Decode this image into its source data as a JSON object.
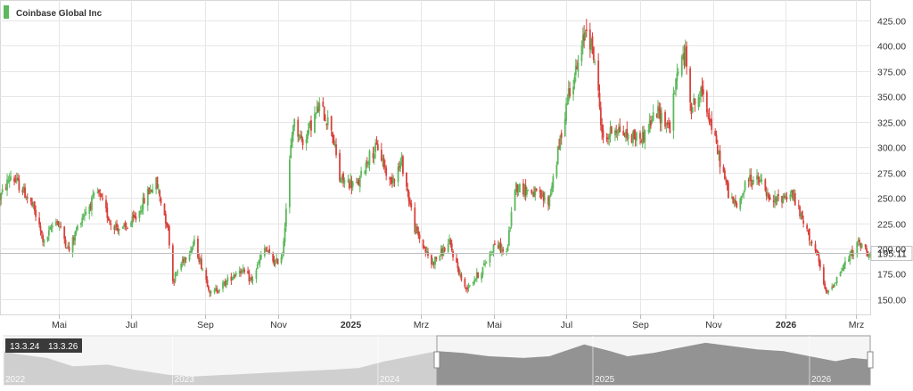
{
  "legend": {
    "label": "Coinbase Global Inc",
    "color": "#5cb85c"
  },
  "colors": {
    "up": "#5cb85c",
    "down": "#d9413b",
    "grid": "#e6e6e6",
    "axis_text": "#333333",
    "navigator_fill": "#8a8a8a",
    "navigator_fill_light": "#cfcfcf"
  },
  "chart_data": {
    "type": "candlestick",
    "title": "Coinbase Global Inc",
    "ylim": [
      135,
      445
    ],
    "y_ticks": [
      150,
      175,
      200,
      225,
      250,
      275,
      300,
      325,
      350,
      375,
      400,
      425
    ],
    "y_tick_labels": [
      "150.00",
      "175.00",
      "200.00",
      "225.00",
      "250.00",
      "275.00",
      "300.00",
      "325.00",
      "350.00",
      "375.00",
      "400.00",
      "425.00"
    ],
    "x_range": [
      "2024-03-13",
      "2026-03-13"
    ],
    "x_ticks": [
      {
        "date": "2024-05-01",
        "label": "Mai",
        "bold": false
      },
      {
        "date": "2024-07-01",
        "label": "Jul",
        "bold": false
      },
      {
        "date": "2024-09-01",
        "label": "Sep",
        "bold": false
      },
      {
        "date": "2024-11-01",
        "label": "Nov",
        "bold": false
      },
      {
        "date": "2025-01-01",
        "label": "2025",
        "bold": true
      },
      {
        "date": "2025-03-01",
        "label": "Mrz",
        "bold": false
      },
      {
        "date": "2025-05-01",
        "label": "Mai",
        "bold": false
      },
      {
        "date": "2025-07-01",
        "label": "Jul",
        "bold": false
      },
      {
        "date": "2025-09-01",
        "label": "Sep",
        "bold": false
      },
      {
        "date": "2025-11-01",
        "label": "Nov",
        "bold": false
      },
      {
        "date": "2026-01-01",
        "label": "2026",
        "bold": true
      },
      {
        "date": "2026-03-01",
        "label": "Mrz",
        "bold": false
      }
    ],
    "last_price": 195.11,
    "last_price_label": "195.11",
    "close_path": [
      {
        "date": "2024-03-13",
        "close": 250
      },
      {
        "date": "2024-03-22",
        "close": 272
      },
      {
        "date": "2024-04-01",
        "close": 258
      },
      {
        "date": "2024-04-10",
        "close": 240
      },
      {
        "date": "2024-04-19",
        "close": 205
      },
      {
        "date": "2024-04-29",
        "close": 230
      },
      {
        "date": "2024-05-10",
        "close": 198
      },
      {
        "date": "2024-05-20",
        "close": 230
      },
      {
        "date": "2024-06-03",
        "close": 255
      },
      {
        "date": "2024-06-14",
        "close": 225
      },
      {
        "date": "2024-06-24",
        "close": 218
      },
      {
        "date": "2024-07-05",
        "close": 230
      },
      {
        "date": "2024-07-15",
        "close": 255
      },
      {
        "date": "2024-07-22",
        "close": 265
      },
      {
        "date": "2024-08-01",
        "close": 220
      },
      {
        "date": "2024-08-05",
        "close": 168
      },
      {
        "date": "2024-08-14",
        "close": 190
      },
      {
        "date": "2024-08-23",
        "close": 205
      },
      {
        "date": "2024-09-06",
        "close": 155
      },
      {
        "date": "2024-09-17",
        "close": 165
      },
      {
        "date": "2024-09-30",
        "close": 180
      },
      {
        "date": "2024-10-10",
        "close": 168
      },
      {
        "date": "2024-10-21",
        "close": 200
      },
      {
        "date": "2024-10-30",
        "close": 185
      },
      {
        "date": "2024-11-05",
        "close": 195
      },
      {
        "date": "2024-11-11",
        "close": 285
      },
      {
        "date": "2024-11-14",
        "close": 325
      },
      {
        "date": "2024-11-22",
        "close": 305
      },
      {
        "date": "2024-12-06",
        "close": 340
      },
      {
        "date": "2024-12-16",
        "close": 320
      },
      {
        "date": "2024-12-23",
        "close": 268
      },
      {
        "date": "2025-01-07",
        "close": 262
      },
      {
        "date": "2025-01-16",
        "close": 290
      },
      {
        "date": "2025-01-24",
        "close": 300
      },
      {
        "date": "2025-02-03",
        "close": 265
      },
      {
        "date": "2025-02-13",
        "close": 285
      },
      {
        "date": "2025-02-24",
        "close": 220
      },
      {
        "date": "2025-03-10",
        "close": 185
      },
      {
        "date": "2025-03-25",
        "close": 205
      },
      {
        "date": "2025-04-07",
        "close": 160
      },
      {
        "date": "2025-04-21",
        "close": 178
      },
      {
        "date": "2025-05-02",
        "close": 205
      },
      {
        "date": "2025-05-12",
        "close": 195
      },
      {
        "date": "2025-05-19",
        "close": 262
      },
      {
        "date": "2025-06-04",
        "close": 255
      },
      {
        "date": "2025-06-16",
        "close": 245
      },
      {
        "date": "2025-06-25",
        "close": 300
      },
      {
        "date": "2025-07-03",
        "close": 355
      },
      {
        "date": "2025-07-11",
        "close": 380
      },
      {
        "date": "2025-07-18",
        "close": 420
      },
      {
        "date": "2025-07-25",
        "close": 385
      },
      {
        "date": "2025-08-01",
        "close": 305
      },
      {
        "date": "2025-08-11",
        "close": 320
      },
      {
        "date": "2025-08-22",
        "close": 310
      },
      {
        "date": "2025-09-03",
        "close": 310
      },
      {
        "date": "2025-09-15",
        "close": 335
      },
      {
        "date": "2025-09-26",
        "close": 320
      },
      {
        "date": "2025-10-03",
        "close": 380
      },
      {
        "date": "2025-10-09",
        "close": 390
      },
      {
        "date": "2025-10-14",
        "close": 340
      },
      {
        "date": "2025-10-24",
        "close": 355
      },
      {
        "date": "2025-11-04",
        "close": 300
      },
      {
        "date": "2025-11-14",
        "close": 255
      },
      {
        "date": "2025-11-21",
        "close": 240
      },
      {
        "date": "2025-12-01",
        "close": 270
      },
      {
        "date": "2025-12-12",
        "close": 265
      },
      {
        "date": "2025-12-19",
        "close": 245
      },
      {
        "date": "2026-01-06",
        "close": 255
      },
      {
        "date": "2026-01-16",
        "close": 225
      },
      {
        "date": "2026-01-27",
        "close": 195
      },
      {
        "date": "2026-02-04",
        "close": 155
      },
      {
        "date": "2026-02-10",
        "close": 165
      },
      {
        "date": "2026-02-20",
        "close": 185
      },
      {
        "date": "2026-03-03",
        "close": 205
      },
      {
        "date": "2026-03-13",
        "close": 195.11
      }
    ]
  },
  "navigator": {
    "date_labels": [
      {
        "label": "2022",
        "pos": 0.0
      },
      {
        "label": "2023",
        "pos": 0.195
      },
      {
        "label": "2024",
        "pos": 0.432
      },
      {
        "label": "2025",
        "pos": 0.68
      },
      {
        "label": "2026",
        "pos": 0.93
      }
    ],
    "range_start_label": "13.3.24",
    "range_end_label": "13.3.26",
    "selected_start": 0.5,
    "selected_end": 1.0,
    "close_path": [
      {
        "t": 0.0,
        "v": 1
      },
      {
        "t": 0.02,
        "v": 0.9
      },
      {
        "t": 0.05,
        "v": 0.8
      },
      {
        "t": 0.08,
        "v": 0.55
      },
      {
        "t": 0.12,
        "v": 0.6
      },
      {
        "t": 0.15,
        "v": 0.45
      },
      {
        "t": 0.19,
        "v": 0.3
      },
      {
        "t": 0.22,
        "v": 0.25
      },
      {
        "t": 0.26,
        "v": 0.3
      },
      {
        "t": 0.3,
        "v": 0.35
      },
      {
        "t": 0.34,
        "v": 0.4
      },
      {
        "t": 0.38,
        "v": 0.45
      },
      {
        "t": 0.41,
        "v": 0.5
      },
      {
        "t": 0.44,
        "v": 0.7
      },
      {
        "t": 0.47,
        "v": 0.85
      },
      {
        "t": 0.5,
        "v": 1.0
      },
      {
        "t": 0.53,
        "v": 0.95
      },
      {
        "t": 0.56,
        "v": 0.85
      },
      {
        "t": 0.6,
        "v": 0.8
      },
      {
        "t": 0.63,
        "v": 0.85
      },
      {
        "t": 0.67,
        "v": 1.2
      },
      {
        "t": 0.7,
        "v": 1.0
      },
      {
        "t": 0.72,
        "v": 0.85
      },
      {
        "t": 0.75,
        "v": 0.95
      },
      {
        "t": 0.78,
        "v": 1.1
      },
      {
        "t": 0.81,
        "v": 1.25
      },
      {
        "t": 0.84,
        "v": 1.15
      },
      {
        "t": 0.87,
        "v": 1.05
      },
      {
        "t": 0.9,
        "v": 1.0
      },
      {
        "t": 0.93,
        "v": 0.85
      },
      {
        "t": 0.96,
        "v": 0.7
      },
      {
        "t": 0.98,
        "v": 0.8
      },
      {
        "t": 1.0,
        "v": 0.75
      }
    ]
  }
}
